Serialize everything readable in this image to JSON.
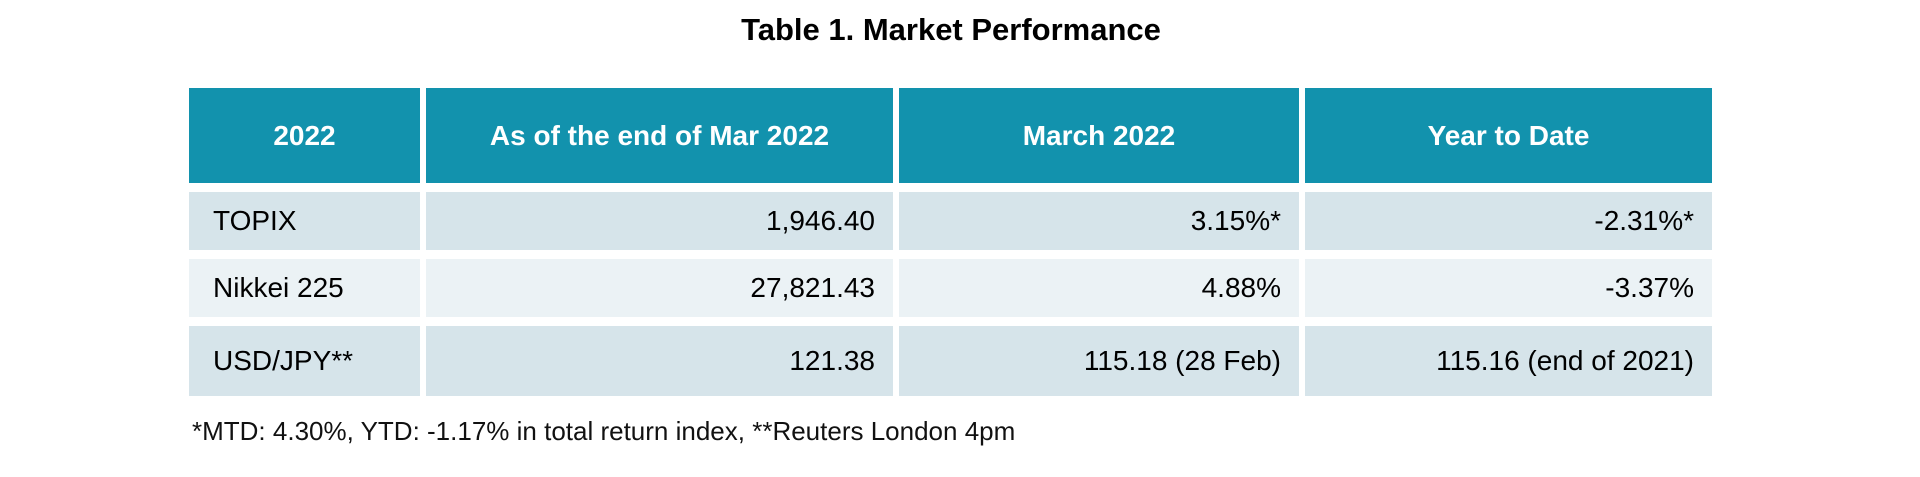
{
  "title": "Table 1. Market Performance",
  "table": {
    "columns": [
      "2022",
      "As of the end of Mar 2022",
      "March 2022",
      "Year to Date"
    ],
    "rows": [
      {
        "label": "TOPIX",
        "values": [
          "1,946.40",
          "3.15%*",
          "-2.31%*"
        ]
      },
      {
        "label": "Nikkei 225",
        "values": [
          "27,821.43",
          "4.88%",
          "-3.37%"
        ]
      },
      {
        "label": "USD/JPY**",
        "values": [
          "121.38",
          "115.18 (28 Feb)",
          "115.16 (end of 2021)"
        ]
      }
    ],
    "footnote": "*MTD: 4.30%, YTD: -1.17% in total return index, **Reuters London 4pm"
  },
  "colors": {
    "header_bg": "#1292ad",
    "header_text": "#ffffff",
    "row_odd_bg": "#d6e4ea",
    "row_even_bg": "#ebf2f5",
    "body_text": "#000000"
  }
}
